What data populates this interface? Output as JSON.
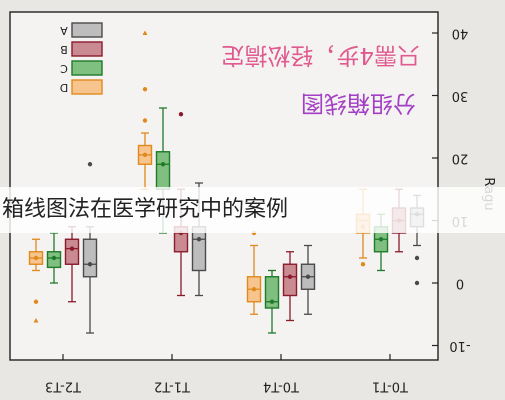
{
  "caption": "箱线图法在医学研究中的案例",
  "overlay_line1": "只需4步，轻松搞定",
  "overlay_line2": "分组箱线图",
  "chart_data": {
    "type": "box",
    "ylabel": "Ragu",
    "ylim": [
      -12,
      42
    ],
    "yticks": [
      -10,
      0,
      10,
      20,
      30,
      40
    ],
    "grid": false,
    "legend": "top-left",
    "series_names": [
      "A",
      "B",
      "C",
      "D"
    ],
    "colors": {
      "A": {
        "fill": "#bdbdbd",
        "stroke": "#4a4a4a"
      },
      "B": {
        "fill": "#c98a92",
        "stroke": "#8b1a2b"
      },
      "C": {
        "fill": "#7fbf7f",
        "stroke": "#1f7a2a"
      },
      "D": {
        "fill": "#f6c48c",
        "stroke": "#e08a1e"
      }
    },
    "categories": [
      "T2-T3",
      "T1-T2",
      "T0-T4",
      "T0-T1"
    ],
    "boxes": [
      {
        "category": "T2-T3",
        "series": "D",
        "whisker_low": 2,
        "q1": 3,
        "median": 4,
        "q3": 5,
        "whisker_high": 7,
        "mean": 4,
        "outliers": [
          -3,
          -6
        ]
      },
      {
        "category": "T2-T3",
        "series": "C",
        "whisker_low": 0,
        "q1": 2.5,
        "median": 4,
        "q3": 5,
        "whisker_high": 8,
        "mean": 4,
        "outliers": []
      },
      {
        "category": "T2-T3",
        "series": "B",
        "whisker_low": -3,
        "q1": 3,
        "median": 5.5,
        "q3": 7,
        "whisker_high": 9,
        "mean": 5.5,
        "outliers": []
      },
      {
        "category": "T2-T3",
        "series": "A",
        "whisker_low": -8,
        "q1": 1,
        "median": 3,
        "q3": 7,
        "whisker_high": 9,
        "mean": 3,
        "outliers": [
          19
        ]
      },
      {
        "category": "T1-T2",
        "series": "D",
        "whisker_low": 15,
        "q1": 19,
        "median": 20.5,
        "q3": 22,
        "whisker_high": 24,
        "mean": 20.5,
        "outliers": [
          26,
          31,
          40
        ]
      },
      {
        "category": "T1-T2",
        "series": "C",
        "whisker_low": 8,
        "q1": 15,
        "median": 19,
        "q3": 21,
        "whisker_high": 28,
        "mean": 19,
        "outliers": []
      },
      {
        "category": "T1-T2",
        "series": "B",
        "whisker_low": -2,
        "q1": 5,
        "median": 8,
        "q3": 9,
        "whisker_high": 15,
        "mean": 8,
        "outliers": [
          27
        ]
      },
      {
        "category": "T1-T2",
        "series": "A",
        "whisker_low": -2,
        "q1": 2,
        "median": 7,
        "q3": 9,
        "whisker_high": 16,
        "mean": 7,
        "outliers": []
      },
      {
        "category": "T0-T4",
        "series": "D",
        "whisker_low": -5,
        "q1": -3,
        "median": -1,
        "q3": 1,
        "whisker_high": 6,
        "mean": -1,
        "outliers": [
          8
        ]
      },
      {
        "category": "T0-T4",
        "series": "C",
        "whisker_low": -8,
        "q1": -4,
        "median": -3,
        "q3": 1,
        "whisker_high": 2,
        "mean": -3,
        "outliers": []
      },
      {
        "category": "T0-T4",
        "series": "B",
        "whisker_low": -6,
        "q1": -2,
        "median": 1,
        "q3": 3,
        "whisker_high": 5,
        "mean": 1,
        "outliers": []
      },
      {
        "category": "T0-T4",
        "series": "A",
        "whisker_low": -5,
        "q1": -1,
        "median": 1,
        "q3": 3,
        "whisker_high": 6,
        "mean": 1,
        "outliers": []
      },
      {
        "category": "T0-T1",
        "series": "D",
        "whisker_low": 4,
        "q1": 8,
        "median": 10,
        "q3": 11,
        "whisker_high": 15,
        "mean": 9,
        "outliers": [
          3
        ]
      },
      {
        "category": "T0-T1",
        "series": "C",
        "whisker_low": 2,
        "q1": 5,
        "median": 7,
        "q3": 9,
        "whisker_high": 11,
        "mean": 7,
        "outliers": []
      },
      {
        "category": "T0-T1",
        "series": "B",
        "whisker_low": 5,
        "q1": 8,
        "median": 10,
        "q3": 12,
        "whisker_high": 15,
        "mean": 10,
        "outliers": []
      },
      {
        "category": "T0-T1",
        "series": "A",
        "whisker_low": 6,
        "q1": 9,
        "median": 11,
        "q3": 12,
        "whisker_high": 14,
        "mean": 11,
        "outliers": [
          4,
          0
        ]
      }
    ]
  }
}
